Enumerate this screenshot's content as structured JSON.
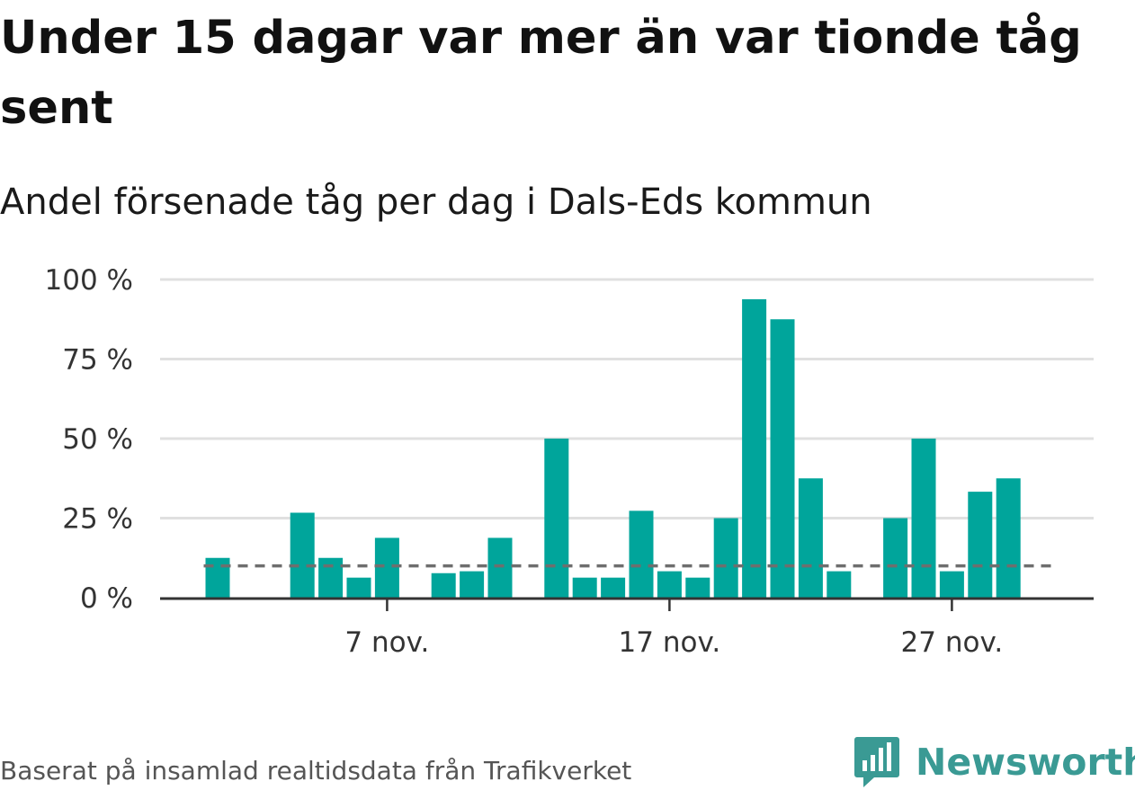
{
  "header": {
    "title": "Under 15 dagar var mer än var tionde tåg sent",
    "subtitle": "Andel försenade tåg per dag i Dals-Eds kommun"
  },
  "footer": {
    "source": "Baserat på insamlad realtidsdata från Trafikverket",
    "logo_text": "Newsworthy"
  },
  "colors": {
    "bar": "#00a59b",
    "reference_line": "#6e6e6e",
    "axis": "#333333",
    "grid": "#e0e0e0",
    "logo": "#3a9a94"
  },
  "icons": {
    "logo": "newsworthy-chart-bubble-icon"
  },
  "chart_data": {
    "type": "bar",
    "title": "Under 15 dagar var mer än var tionde tåg sent",
    "subtitle": "Andel försenade tåg per dag i Dals-Eds kommun",
    "x": [
      1,
      2,
      3,
      4,
      5,
      6,
      7,
      8,
      9,
      10,
      11,
      12,
      13,
      14,
      15,
      16,
      17,
      18,
      19,
      20,
      21,
      22,
      23,
      24,
      25,
      26,
      27,
      28,
      29,
      30
    ],
    "x_unit": "day of November",
    "values": [
      12.5,
      null,
      null,
      26.7,
      12.5,
      6.3,
      18.8,
      null,
      7.7,
      8.3,
      18.8,
      null,
      50,
      6.3,
      6.3,
      27.3,
      8.3,
      6.3,
      25,
      93.8,
      87.5,
      37.5,
      8.3,
      null,
      25,
      50,
      8.3,
      33.3,
      37.5,
      null
    ],
    "reference_line": {
      "value": 10,
      "style": "dashed"
    },
    "ylim": [
      0,
      100
    ],
    "y_ticks": [
      0,
      25,
      50,
      75,
      100
    ],
    "y_tick_labels": [
      "0 %",
      "25 %",
      "50 %",
      "75 %",
      "100 %"
    ],
    "x_ticks": [
      7,
      17,
      27
    ],
    "x_tick_labels": [
      "7 nov.",
      "17 nov.",
      "27 nov."
    ],
    "xlabel": "",
    "ylabel": "",
    "grid": "horizontal",
    "legend": "none"
  }
}
